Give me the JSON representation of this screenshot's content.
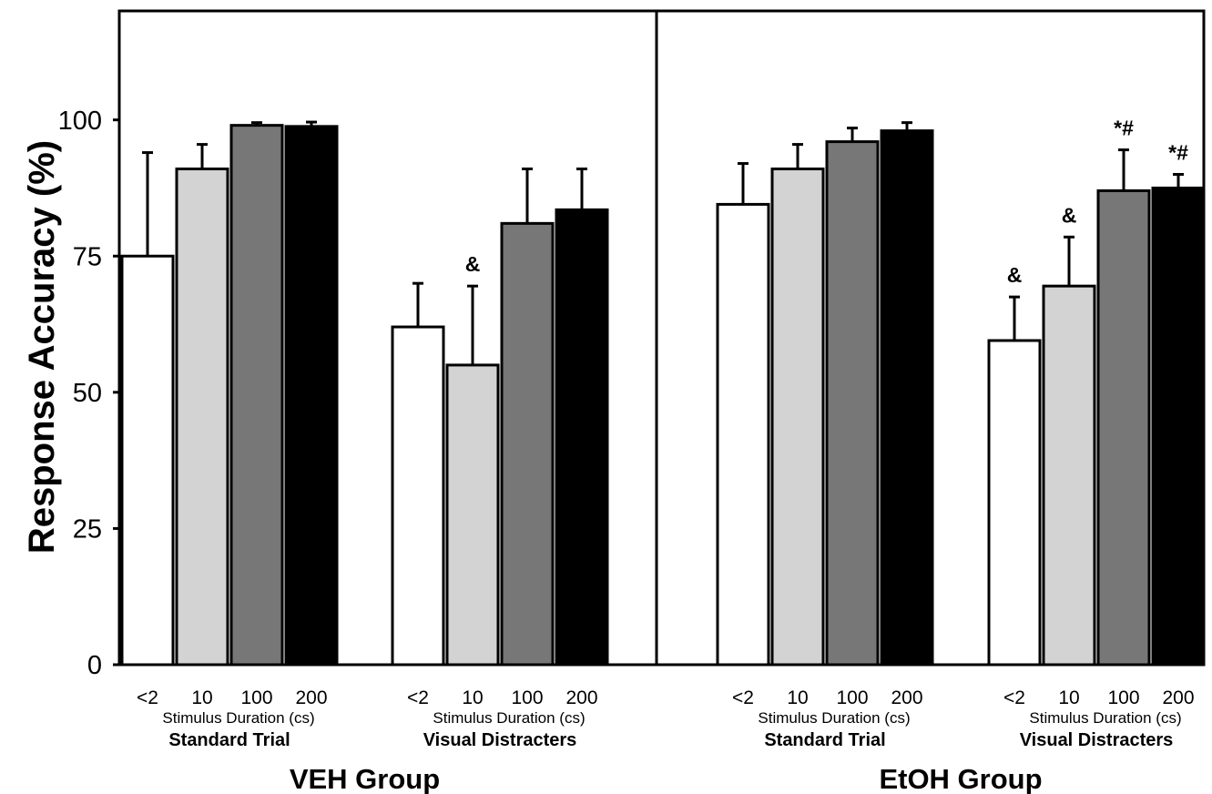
{
  "chart_data": {
    "type": "bar",
    "ylabel": "Response Accuracy (%)",
    "ylim": [
      0,
      120
    ],
    "yticks": [
      "0",
      "25",
      "50",
      "75",
      "100"
    ],
    "categories": [
      "<2",
      "10",
      "100",
      "200"
    ],
    "axis_sublabel": "Stimulus Duration (cs)",
    "colors": [
      "#ffffff",
      "#d3d3d3",
      "#777777",
      "#000000"
    ],
    "groups": [
      {
        "name": "VEH Group",
        "conditions": [
          {
            "name": "Standard Trial",
            "values": [
              75,
              91,
              99,
              98.8
            ],
            "errors": [
              19,
              4.5,
              0.5,
              0.8
            ],
            "annotations": [
              "",
              "",
              "",
              ""
            ]
          },
          {
            "name": "Visual Distracters",
            "values": [
              62,
              55,
              81,
              83.5
            ],
            "errors": [
              8,
              14.5,
              10,
              7.5
            ],
            "annotations": [
              "",
              "&",
              "",
              ""
            ]
          }
        ]
      },
      {
        "name": "EtOH Group",
        "conditions": [
          {
            "name": "Standard Trial",
            "values": [
              84.5,
              91,
              96,
              98
            ],
            "errors": [
              7.5,
              4.5,
              2.5,
              1.5
            ],
            "annotations": [
              "",
              "",
              "",
              ""
            ]
          },
          {
            "name": "Visual Distracters",
            "values": [
              59.5,
              69.5,
              87,
              87.5
            ],
            "errors": [
              8,
              9,
              7.5,
              2.5
            ],
            "annotations": [
              "&",
              "&",
              "*#",
              "*#"
            ]
          }
        ]
      }
    ],
    "grid": false,
    "legend": "none"
  }
}
